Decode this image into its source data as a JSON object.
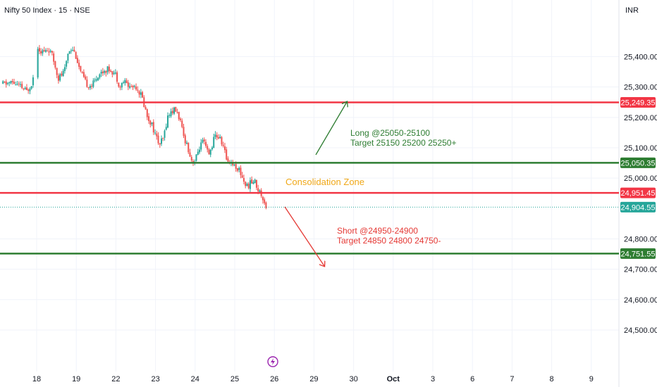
{
  "header": {
    "title": "Nifty 50 Index · 15 · NSE",
    "currency": "INR"
  },
  "annotations": {
    "long": {
      "line1": "Long @25050-25100",
      "line2": "Target 25150 25200 25250+",
      "color": "#2e7d32"
    },
    "short": {
      "line1": "Short @24950-24900",
      "line2": "Target 24850 24800 24750-",
      "color": "#e53935"
    },
    "zone": {
      "text": "Consolidation Zone",
      "color": "#f0a818"
    }
  },
  "colors": {
    "up": "#26a69a",
    "down": "#ef5350",
    "red_line": "#f23645",
    "green_line": "#2e7d32",
    "current": "#26a69a"
  },
  "chart_data": {
    "type": "candlestick",
    "symbol": "Nifty 50 Index",
    "interval": "15",
    "exchange": "NSE",
    "ylim": [
      24480,
      25480
    ],
    "x_ticks": [
      {
        "label": "18",
        "day": 0
      },
      {
        "label": "19",
        "day": 1
      },
      {
        "label": "22",
        "day": 2
      },
      {
        "label": "23",
        "day": 3
      },
      {
        "label": "24",
        "day": 4
      },
      {
        "label": "25",
        "day": 5
      },
      {
        "label": "26",
        "day": 6
      },
      {
        "label": "29",
        "day": 7
      },
      {
        "label": "30",
        "day": 8
      },
      {
        "label": "Oct",
        "day": 9
      },
      {
        "label": "3",
        "day": 10
      },
      {
        "label": "6",
        "day": 11
      },
      {
        "label": "7",
        "day": 12
      },
      {
        "label": "8",
        "day": 13
      },
      {
        "label": "9",
        "day": 14
      }
    ],
    "y_ticks": [
      "25,400.00",
      "25,300.00",
      "25,200.00",
      "25,100.00",
      "25,000.00",
      "24,800.00",
      "24,700.00",
      "24,600.00",
      "24,500.00"
    ],
    "y_tick_values": [
      25400,
      25300,
      25200,
      25100,
      25000,
      24800,
      24700,
      24600,
      24500
    ],
    "levels": [
      {
        "label": "25,249.35",
        "value": 25249.35,
        "color": "red"
      },
      {
        "label": "25,050.35",
        "value": 25050.35,
        "color": "green"
      },
      {
        "label": "24,951.45",
        "value": 24951.45,
        "color": "red"
      },
      {
        "label": "24,751.55",
        "value": 24751.55,
        "color": "green"
      }
    ],
    "current_price": {
      "label": "24,904.55",
      "value": 24904.55
    },
    "path": [
      [
        -0.85,
        25310
      ],
      [
        -0.6,
        25315
      ],
      [
        -0.4,
        25300
      ],
      [
        -0.25,
        25285
      ],
      [
        -0.1,
        25320
      ],
      [
        0.0,
        25440
      ],
      [
        0.1,
        25420
      ],
      [
        0.2,
        25415
      ],
      [
        0.3,
        25425
      ],
      [
        0.4,
        25400
      ],
      [
        0.55,
        25330
      ],
      [
        0.7,
        25350
      ],
      [
        0.8,
        25420
      ],
      [
        0.9,
        25430
      ],
      [
        1.0,
        25400
      ],
      [
        1.1,
        25350
      ],
      [
        1.25,
        25310
      ],
      [
        1.4,
        25305
      ],
      [
        1.55,
        25340
      ],
      [
        1.7,
        25355
      ],
      [
        1.85,
        25360
      ],
      [
        2.0,
        25340
      ],
      [
        2.1,
        25300
      ],
      [
        2.2,
        25320
      ],
      [
        2.35,
        25300
      ],
      [
        2.5,
        25305
      ],
      [
        2.65,
        25270
      ],
      [
        2.8,
        25200
      ],
      [
        2.9,
        25180
      ],
      [
        3.0,
        25140
      ],
      [
        3.1,
        25110
      ],
      [
        3.2,
        25130
      ],
      [
        3.3,
        25200
      ],
      [
        3.4,
        25220
      ],
      [
        3.5,
        25225
      ],
      [
        3.6,
        25200
      ],
      [
        3.7,
        25140
      ],
      [
        3.8,
        25110
      ],
      [
        3.9,
        25060
      ],
      [
        4.0,
        25055
      ],
      [
        4.1,
        25100
      ],
      [
        4.2,
        25120
      ],
      [
        4.35,
        25075
      ],
      [
        4.5,
        25140
      ],
      [
        4.6,
        25135
      ],
      [
        4.7,
        25110
      ],
      [
        4.8,
        25060
      ],
      [
        4.9,
        25055
      ],
      [
        5.0,
        25040
      ],
      [
        5.1,
        25030
      ],
      [
        5.2,
        25000
      ],
      [
        5.3,
        24970
      ],
      [
        5.4,
        24985
      ],
      [
        5.5,
        24990
      ],
      [
        5.6,
        24960
      ],
      [
        5.7,
        24940
      ],
      [
        5.8,
        24905
      ]
    ]
  }
}
